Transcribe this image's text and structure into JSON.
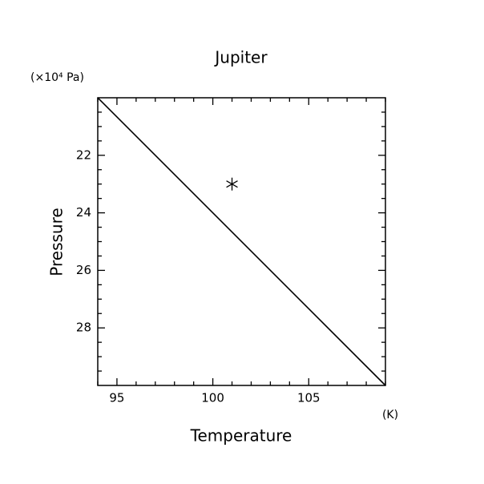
{
  "chart_data": {
    "type": "line",
    "title": "Jupiter",
    "x_label": "Temperature",
    "y_label": "Pressure",
    "x_unit": "(K)",
    "y_unit": "(×10⁴ Pa)",
    "series": [
      {
        "x": [
          94,
          109
        ],
        "values": [
          20,
          30
        ],
        "color": "#000000"
      }
    ],
    "points": [
      {
        "x": 101,
        "y": 23,
        "color": "#000000"
      }
    ],
    "xlim": [
      94,
      109
    ],
    "ylim": [
      20,
      30
    ],
    "y_inverted": true,
    "xticks": [
      95,
      100,
      105
    ],
    "yticks": [
      22,
      24,
      26,
      28
    ],
    "xminorticks": [
      94,
      96,
      97,
      98,
      99,
      101,
      102,
      103,
      104,
      106,
      107,
      108,
      109
    ],
    "yminorticks": [
      20.5,
      21,
      21.5,
      22.5,
      23,
      23.5,
      24.5,
      25,
      25.5,
      26.5,
      27,
      27.5,
      28.5,
      29,
      29.5
    ],
    "grid": false
  }
}
